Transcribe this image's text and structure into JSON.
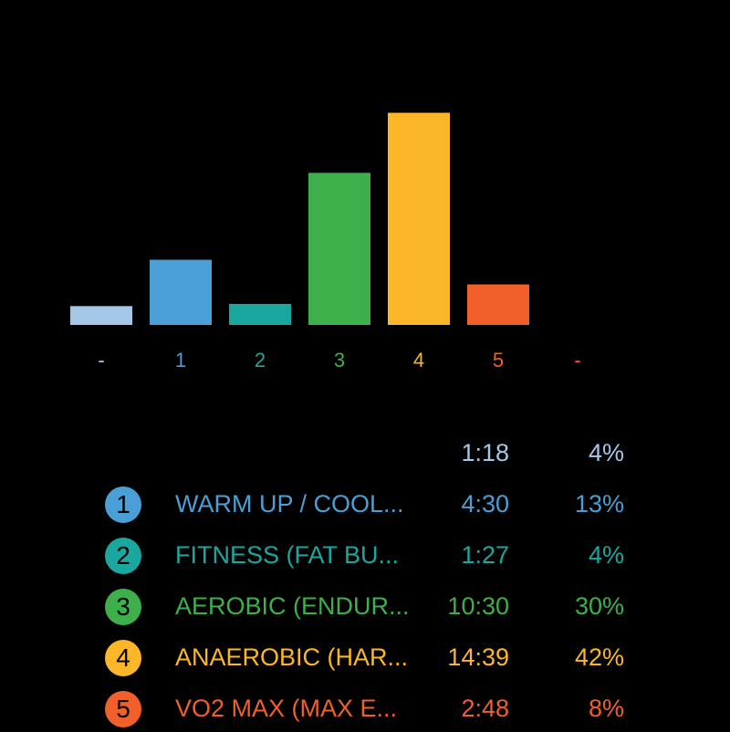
{
  "chart_data": {
    "type": "bar",
    "title": "",
    "xlabel": "",
    "ylabel": "",
    "categories": [
      "-",
      "1",
      "2",
      "3",
      "4",
      "5",
      "-"
    ],
    "values": [
      78,
      270,
      87,
      630,
      879,
      168,
      0
    ],
    "value_unit": "seconds",
    "ylim": [
      0,
      900
    ],
    "grid": false,
    "legend": "none",
    "colors": [
      "#a6c8e8",
      "#4a9fd6",
      "#1aa7a0",
      "#3db04b",
      "#fbb728",
      "#f15f2a",
      "#f15f2a"
    ]
  },
  "zones": [
    {
      "badge": "",
      "name": "",
      "time": "1:18",
      "percent": "4%",
      "color": "#a6c8e8"
    },
    {
      "badge": "1",
      "name": "WARM UP / COOL...",
      "time": "4:30",
      "percent": "13%",
      "color": "#4a9fd6"
    },
    {
      "badge": "2",
      "name": "FITNESS  (FAT BU...",
      "time": "1:27",
      "percent": "4%",
      "color": "#1aa7a0"
    },
    {
      "badge": "3",
      "name": "AEROBIC  (ENDUR...",
      "time": "10:30",
      "percent": "30%",
      "color": "#3db04b"
    },
    {
      "badge": "4",
      "name": "ANAEROBIC  (HAR...",
      "time": "14:39",
      "percent": "42%",
      "color": "#fbb728"
    },
    {
      "badge": "5",
      "name": "VO2 MAX  (MAX E...",
      "time": "2:48",
      "percent": "8%",
      "color": "#f15f2a"
    }
  ]
}
